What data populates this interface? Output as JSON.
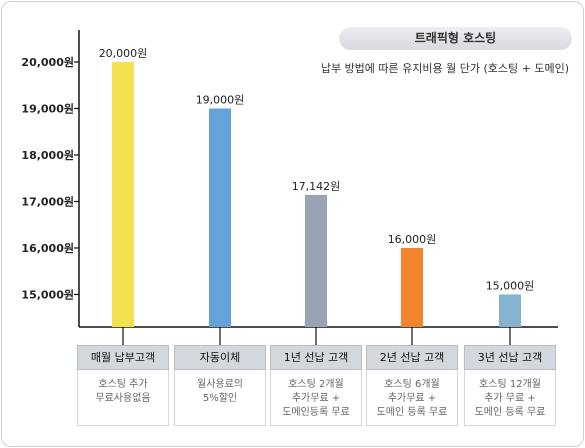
{
  "header": {
    "badge": "트래픽형 호스팅",
    "subtitle": "납부 방법에 따른 유지비용 월 단가 (호스팅 + 도메인)"
  },
  "chart_data": {
    "type": "bar",
    "categories": [
      "매월 납부고객",
      "자동이체",
      "1년 선납 고객",
      "2년 선납 고객",
      "3년 선납 고객"
    ],
    "values": [
      20000,
      19000,
      17142,
      16000,
      15000
    ],
    "value_labels": [
      "20,000원",
      "19,000원",
      "17,142원",
      "16,000원",
      "15,000원"
    ],
    "descriptions": [
      "호스팅 추가\n무료사용없음",
      "월사용료의\n5%할인",
      "호스팅 2개월\n추가무료 +\n도메인등록 무료",
      "호스팅 6개월\n추가무료 +\n도메인 등록 무료",
      "호스팅 12개월\n추가 무료 +\n도메인 등록 무료"
    ],
    "yticks": [
      20000,
      19000,
      18000,
      17000,
      16000,
      15000
    ],
    "ytick_labels": [
      "20,000원",
      "19,000원",
      "18,000원",
      "17,000원",
      "16,000원",
      "15,000원"
    ],
    "ylim": [
      14300,
      20000
    ],
    "colors": [
      "#f3e14f",
      "#64a2dc",
      "#98a3b4",
      "#f2842c",
      "#84b2cf"
    ],
    "xlabel": "",
    "ylabel": "",
    "grid": false,
    "legend": "none"
  }
}
